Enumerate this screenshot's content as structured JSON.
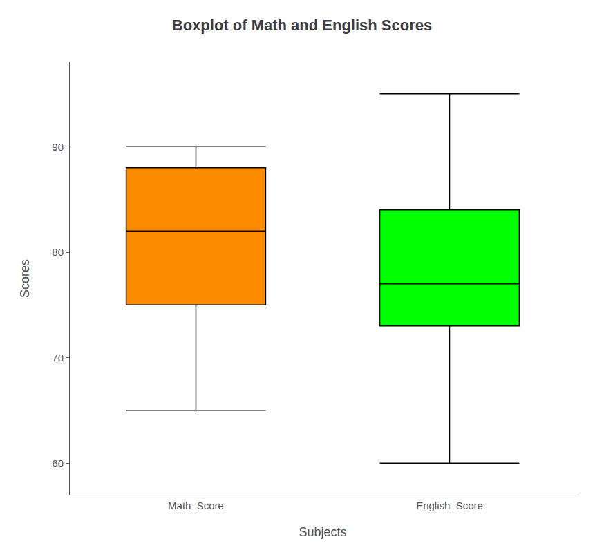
{
  "chart_data": {
    "type": "boxplot",
    "title": "Boxplot of Math and English Scores",
    "x_label": "Subjects",
    "y_label": "Scores",
    "categories": [
      "Math_Score",
      "English_Score"
    ],
    "values": [
      [
        65,
        75,
        82,
        88,
        90
      ],
      [
        60,
        73,
        77,
        84,
        95
      ]
    ],
    "colors": [
      "#FF8C00",
      "#00FF00"
    ],
    "ylim": [
      57,
      98
    ],
    "yticks": [
      60,
      70,
      80,
      90
    ],
    "grid": false
  }
}
